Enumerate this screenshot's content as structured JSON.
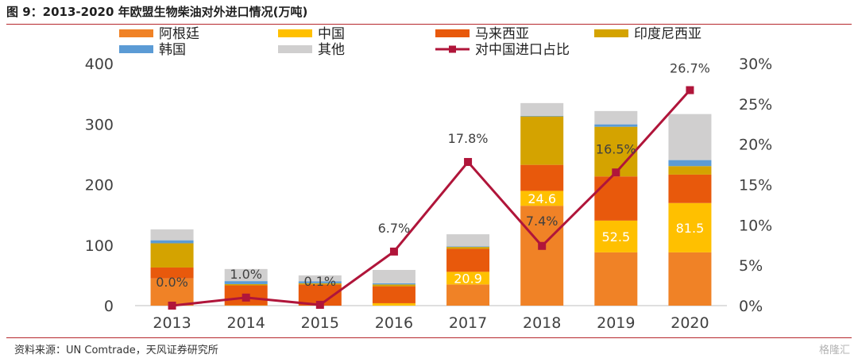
{
  "title": "图 9：2013-2020 年欧盟生物柴油对外进口情况(万吨)",
  "source": "资料来源：UN Comtrade，天风证券研究所",
  "watermark": "格隆汇",
  "chart_data": {
    "type": "bar",
    "stacked": true,
    "categories": [
      "2013",
      "2014",
      "2015",
      "2016",
      "2017",
      "2018",
      "2019",
      "2020"
    ],
    "series": [
      {
        "name": "阿根廷",
        "color": "#f08226",
        "values": [
          45,
          0,
          0,
          0,
          35,
          165,
          88,
          88
        ]
      },
      {
        "name": "中国",
        "color": "#ffc000",
        "values": [
          0,
          0.5,
          0,
          4,
          20.9,
          24.6,
          52.5,
          81.5
        ]
      },
      {
        "name": "马来西亚",
        "color": "#e8590c",
        "values": [
          18,
          33,
          35,
          28,
          38,
          43,
          73,
          47
        ]
      },
      {
        "name": "印度尼西亚",
        "color": "#d4a300",
        "values": [
          40,
          2,
          2,
          3,
          3,
          80,
          82,
          14
        ]
      },
      {
        "name": "韩国",
        "color": "#5b9bd5",
        "values": [
          5,
          5,
          3,
          2,
          1,
          1,
          4,
          10
        ]
      },
      {
        "name": "其他",
        "color": "#d0cfcf",
        "values": [
          18,
          20,
          10,
          22,
          20,
          21,
          22,
          76
        ]
      }
    ],
    "bar_labels": {
      "series": "中国",
      "values": [
        null,
        null,
        null,
        null,
        20.9,
        24.6,
        52.5,
        81.5
      ],
      "text": [
        "",
        "",
        "",
        "",
        "20.9",
        "24.6",
        "52.5",
        "81.5"
      ]
    },
    "line": {
      "name": "对中国进口占比",
      "color": "#b0153a",
      "axis": "right",
      "values": [
        0.0,
        1.0,
        0.1,
        6.7,
        17.8,
        7.4,
        16.5,
        26.7
      ],
      "labels": [
        "0.0%",
        "1.0%",
        "0.1%",
        "6.7%",
        "17.8%",
        "7.4%",
        "16.5%",
        "26.7%"
      ]
    },
    "y_left": {
      "min": 0,
      "max": 400,
      "ticks": [
        0,
        100,
        200,
        300,
        400
      ],
      "tick_labels": [
        "0",
        "100",
        "200",
        "300",
        "400"
      ]
    },
    "y_right": {
      "min": 0,
      "max": 30,
      "ticks": [
        0,
        5,
        10,
        15,
        20,
        25,
        30
      ],
      "tick_labels": [
        "0%",
        "5%",
        "10%",
        "15%",
        "20%",
        "25%",
        "30%"
      ]
    },
    "legend_position": "top",
    "grid": false
  }
}
